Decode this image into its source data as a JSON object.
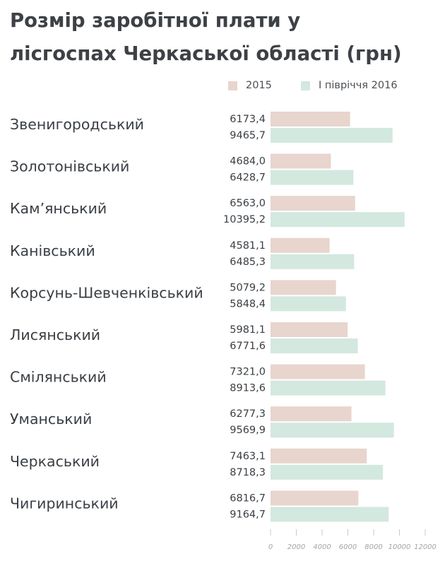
{
  "chart_data": {
    "type": "bar",
    "orientation": "horizontal",
    "title_lines": [
      "Розмір заробітної плати у",
      "лісгоспах Черкаської області (грн)"
    ],
    "categories": [
      "Звенигородський",
      "Золотонівський",
      "Кам’янський",
      "Канівський",
      "Корсунь-Шевченківський",
      "Лисянський",
      "Смілянський",
      "Уманський",
      "Черкаський",
      "Чигиринський"
    ],
    "series": [
      {
        "name": "2015",
        "color": "#e8d5cd",
        "values": [
          6173.4,
          4684.0,
          6563.0,
          4581.1,
          5079.2,
          5981.1,
          7321.0,
          6277.3,
          7463.1,
          6816.7
        ],
        "labels": [
          "6173,4",
          "4684,0",
          "6563,0",
          "4581,1",
          "5079,2",
          "5981,1",
          "7321,0",
          "6277,3",
          "7463,1",
          "6816,7"
        ]
      },
      {
        "name": "І півріччя 2016",
        "color": "#d3e8df",
        "values": [
          9465.7,
          6428.7,
          10395.2,
          6485.3,
          5848.4,
          6771.6,
          8913.6,
          9569.9,
          8718.3,
          9164.7
        ],
        "labels": [
          "9465,7",
          "6428,7",
          "10395,2",
          "6485,3",
          "5848,4",
          "6771,6",
          "8913,6",
          "9569,9",
          "8718,3",
          "9164,7"
        ]
      }
    ],
    "xlim": [
      0,
      12000
    ],
    "xticks": [
      0,
      2000,
      4000,
      6000,
      8000,
      10000,
      12000
    ],
    "xtick_labels": [
      "0",
      "2000",
      "4000",
      "6000",
      "8000",
      "10000",
      "12000"
    ],
    "legend_position": "top-right",
    "grid": false
  }
}
